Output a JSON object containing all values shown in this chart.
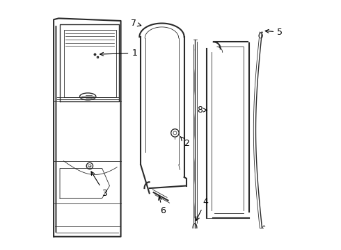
{
  "background_color": "#ffffff",
  "line_color": "#2a2a2a",
  "label_color": "#000000",
  "label_fontsize": 9,
  "fig_width": 4.9,
  "fig_height": 3.6,
  "dpi": 100
}
